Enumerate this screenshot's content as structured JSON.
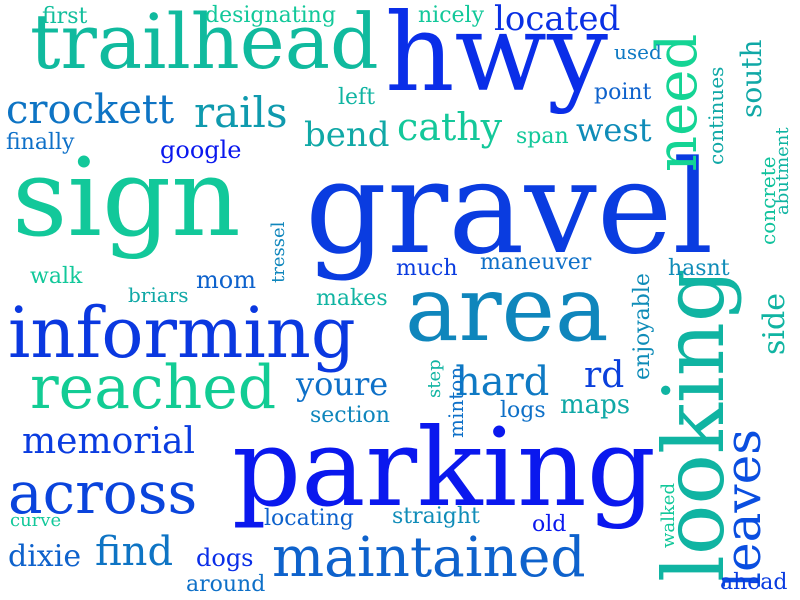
{
  "words": [
    {
      "text": "gravel",
      "color": "#0a3ce0",
      "orientation": "horizontal"
    },
    {
      "text": "sign",
      "color": "#12c89a",
      "orientation": "horizontal"
    },
    {
      "text": "parking",
      "color": "#0a18ee",
      "orientation": "horizontal"
    },
    {
      "text": "hwy",
      "color": "#0a2ee8",
      "orientation": "horizontal"
    },
    {
      "text": "area",
      "color": "#0f86bc",
      "orientation": "horizontal"
    },
    {
      "text": "informing",
      "color": "#0a38e0",
      "orientation": "horizontal"
    },
    {
      "text": "trailhead",
      "color": "#10ba9e",
      "orientation": "horizontal"
    },
    {
      "text": "looking",
      "color": "#10b4a2",
      "orientation": "vertical"
    },
    {
      "text": "reached",
      "color": "#12cc94",
      "orientation": "horizontal"
    },
    {
      "text": "maintained",
      "color": "#0e62cc",
      "orientation": "horizontal"
    },
    {
      "text": "across",
      "color": "#0a44dc",
      "orientation": "horizontal"
    },
    {
      "text": "need",
      "color": "#14d494",
      "orientation": "vertical"
    },
    {
      "text": "leaves",
      "color": "#0a4ee0",
      "orientation": "vertical"
    },
    {
      "text": "hard",
      "color": "#0f7ac4",
      "orientation": "horizontal"
    },
    {
      "text": "memorial",
      "color": "#0a3ce0",
      "orientation": "horizontal"
    },
    {
      "text": "crockett",
      "color": "#0e74c4",
      "orientation": "horizontal"
    },
    {
      "text": "rails",
      "color": "#0f9aae",
      "orientation": "horizontal"
    },
    {
      "text": "cathy",
      "color": "#14c89a",
      "orientation": "horizontal"
    },
    {
      "text": "located",
      "color": "#0a30e4",
      "orientation": "horizontal"
    },
    {
      "text": "find",
      "color": "#0e74c4",
      "orientation": "horizontal"
    },
    {
      "text": "youre",
      "color": "#0e70c8",
      "orientation": "horizontal"
    },
    {
      "text": "bend",
      "color": "#10a8a6",
      "orientation": "horizontal"
    },
    {
      "text": "west",
      "color": "#0f8cb8",
      "orientation": "horizontal"
    },
    {
      "text": "rd",
      "color": "#0a40dc",
      "orientation": "horizontal"
    },
    {
      "text": "dixie",
      "color": "#0e62cc",
      "orientation": "horizontal"
    },
    {
      "text": "south",
      "color": "#10a8a6",
      "orientation": "vertical"
    },
    {
      "text": "side",
      "color": "#10b4a2",
      "orientation": "vertical"
    },
    {
      "text": "maps",
      "color": "#10a8a6",
      "orientation": "horizontal"
    },
    {
      "text": "enjoyable",
      "color": "#0f8cb8",
      "orientation": "vertical"
    },
    {
      "text": "continues",
      "color": "#10a8a6",
      "orientation": "vertical"
    },
    {
      "text": "concrete",
      "color": "#10c29c",
      "orientation": "vertical"
    },
    {
      "text": "abutment",
      "color": "#10b4a2",
      "orientation": "vertical"
    },
    {
      "text": "first",
      "color": "#12be9c",
      "orientation": "horizontal"
    },
    {
      "text": "designating",
      "color": "#12c89a",
      "orientation": "horizontal"
    },
    {
      "text": "nicely",
      "color": "#12c89a",
      "orientation": "horizontal"
    },
    {
      "text": "used",
      "color": "#0f7ac4",
      "orientation": "horizontal"
    },
    {
      "text": "point",
      "color": "#0e62cc",
      "orientation": "horizontal"
    },
    {
      "text": "left",
      "color": "#10b4a2",
      "orientation": "horizontal"
    },
    {
      "text": "finally",
      "color": "#0e70c8",
      "orientation": "horizontal"
    },
    {
      "text": "google",
      "color": "#0a18ee",
      "orientation": "horizontal"
    },
    {
      "text": "span",
      "color": "#12c89a",
      "orientation": "horizontal"
    },
    {
      "text": "tressel",
      "color": "#0f86bc",
      "orientation": "vertical"
    },
    {
      "text": "walk",
      "color": "#12c89a",
      "orientation": "horizontal"
    },
    {
      "text": "briars",
      "color": "#10a8a6",
      "orientation": "horizontal"
    },
    {
      "text": "mom",
      "color": "#0e62cc",
      "orientation": "horizontal"
    },
    {
      "text": "much",
      "color": "#0a3ce0",
      "orientation": "horizontal"
    },
    {
      "text": "maneuver",
      "color": "#0e70c8",
      "orientation": "horizontal"
    },
    {
      "text": "hasnt",
      "color": "#0f8cb8",
      "orientation": "horizontal"
    },
    {
      "text": "makes",
      "color": "#10b4a2",
      "orientation": "horizontal"
    },
    {
      "text": "step",
      "color": "#10b4a2",
      "orientation": "vertical"
    },
    {
      "text": "minton",
      "color": "#0e70c8",
      "orientation": "vertical"
    },
    {
      "text": "section",
      "color": "#0f86bc",
      "orientation": "horizontal"
    },
    {
      "text": "logs",
      "color": "#0e70c8",
      "orientation": "horizontal"
    },
    {
      "text": "locating",
      "color": "#0e62cc",
      "orientation": "horizontal"
    },
    {
      "text": "straight",
      "color": "#0f8cb8",
      "orientation": "horizontal"
    },
    {
      "text": "curve",
      "color": "#12c89a",
      "orientation": "horizontal"
    },
    {
      "text": "dogs",
      "color": "#0a2ee8",
      "orientation": "horizontal"
    },
    {
      "text": "around",
      "color": "#0e70c8",
      "orientation": "horizontal"
    },
    {
      "text": "old",
      "color": "#0a18ee",
      "orientation": "horizontal"
    },
    {
      "text": "walked",
      "color": "#12c89a",
      "orientation": "vertical"
    },
    {
      "text": "ahead",
      "color": "#0a3ce0",
      "orientation": "horizontal"
    }
  ]
}
